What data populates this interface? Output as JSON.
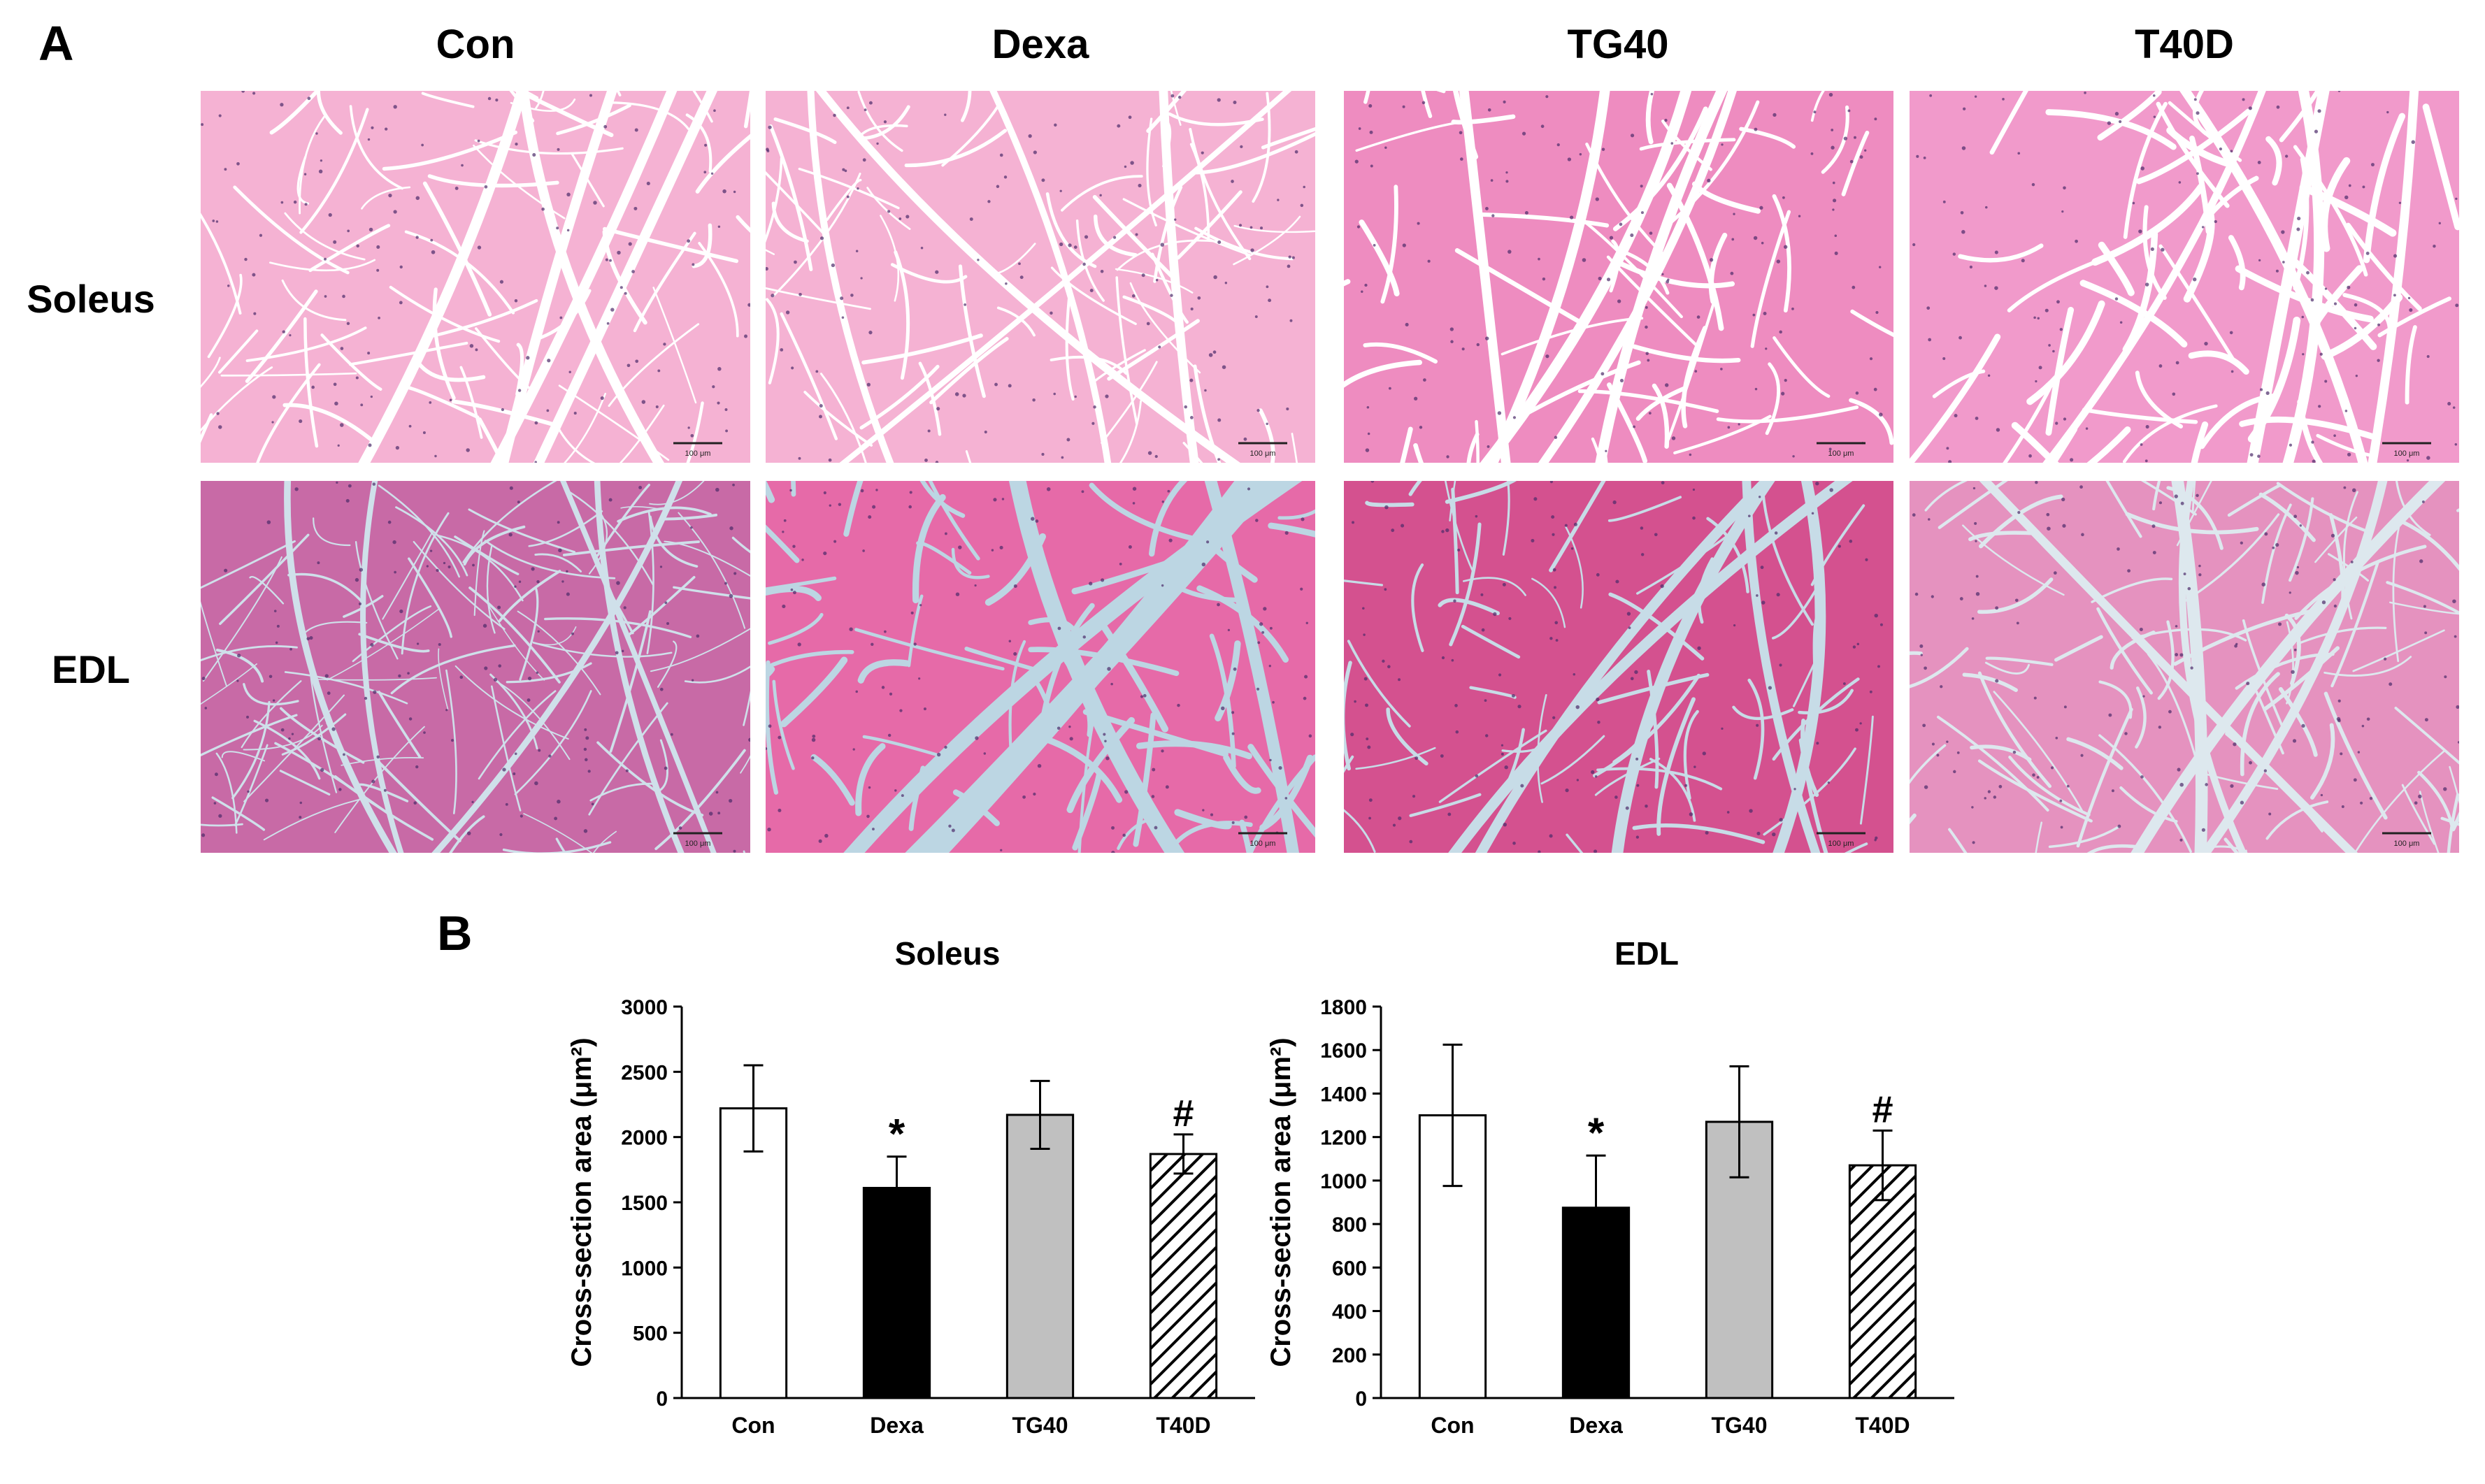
{
  "panel_a": {
    "letter": "A",
    "columns": [
      "Con",
      "Dexa",
      "TG40",
      "T40D"
    ],
    "rows": [
      "Soleus",
      "EDL"
    ],
    "scale_bar_label": "100 μm",
    "colors": {
      "soleus_fill": "#f2a3c9",
      "edl_fill": "#c96aa8",
      "gap": "#ffffff",
      "edl_gap": "#bcd6e3"
    }
  },
  "panel_b": {
    "letter": "B"
  },
  "chart_data": [
    {
      "type": "bar",
      "title": "Soleus",
      "ylabel": "Cross-section area (μm²)",
      "categories": [
        "Con",
        "Dexa",
        "TG40",
        "T40D"
      ],
      "values": [
        2220,
        1610,
        2170,
        1870
      ],
      "errors": [
        330,
        240,
        260,
        150
      ],
      "annotations": [
        "",
        "*",
        "",
        "#"
      ],
      "fills": [
        "white",
        "black",
        "gray",
        "hatched"
      ],
      "ylim": [
        0,
        3000
      ],
      "yticks": [
        0,
        500,
        1000,
        1500,
        2000,
        2500,
        3000
      ]
    },
    {
      "type": "bar",
      "title": "EDL",
      "ylabel": "Cross-section area (μm²)",
      "categories": [
        "Con",
        "Dexa",
        "TG40",
        "T40D"
      ],
      "values": [
        1300,
        875,
        1270,
        1070
      ],
      "errors": [
        325,
        240,
        255,
        160
      ],
      "annotations": [
        "",
        "*",
        "",
        "#"
      ],
      "fills": [
        "white",
        "black",
        "gray",
        "hatched"
      ],
      "ylim": [
        0,
        1800
      ],
      "yticks": [
        0,
        200,
        400,
        600,
        800,
        1000,
        1200,
        1400,
        1600,
        1800
      ]
    }
  ]
}
